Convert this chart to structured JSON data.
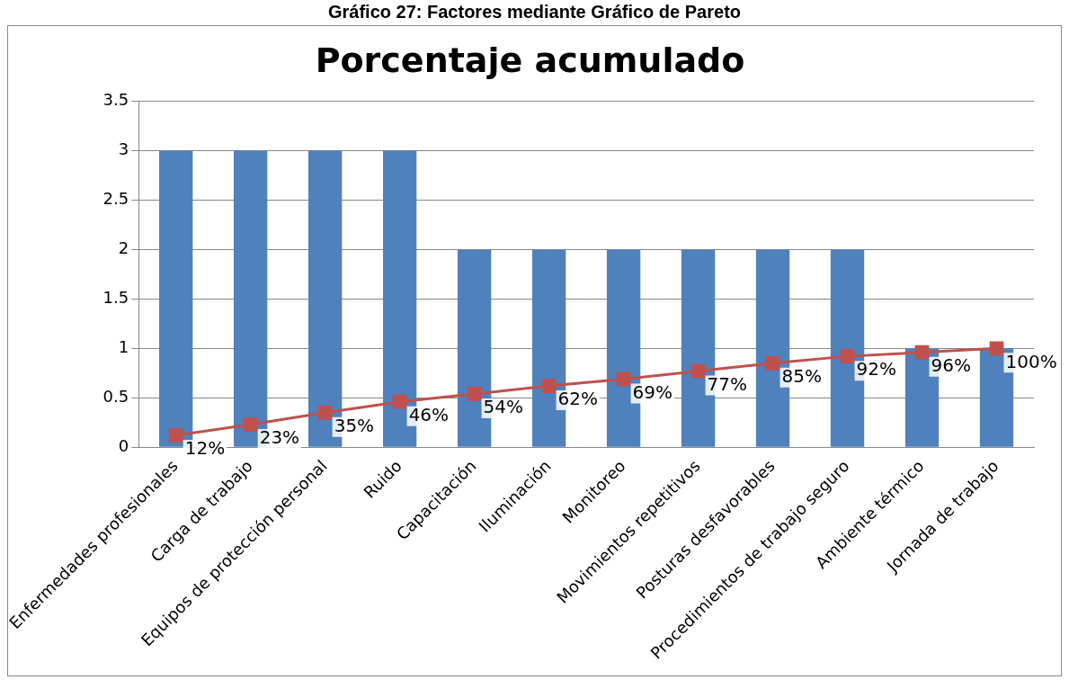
{
  "chart_data": {
    "type": "bar",
    "title": "Porcentaje acumulado",
    "annotations": [
      "Gráfico 27: Factores mediante Gráfico de Pareto"
    ],
    "categories": [
      "Enfermedades profesionales",
      "Carga de trabajo",
      "Equipos de protección personal",
      "Ruido",
      "Capacitación",
      "Iluminación",
      "Monitoreo",
      "Movimientos repetitivos",
      "Posturas desfavorables",
      "Procedimientos de trabajo seguro",
      "Ambiente térmico",
      "Jornada de trabajo"
    ],
    "series": [
      {
        "color": "#4f81bd",
        "values": [
          3,
          3,
          3,
          3,
          2,
          2,
          2,
          2,
          2,
          2,
          1,
          1
        ]
      },
      {
        "type": "line",
        "color": "#c0504d",
        "marker": "square",
        "values": [
          0.12,
          0.23,
          0.35,
          0.46,
          0.54,
          0.62,
          0.69,
          0.77,
          0.85,
          0.92,
          0.96,
          1.0
        ],
        "value_labels": [
          "12%",
          "23%",
          "35%",
          "46%",
          "54%",
          "62%",
          "69%",
          "77%",
          "85%",
          "92%",
          "96%",
          "100%"
        ]
      }
    ],
    "ylim": [
      0,
      3.5
    ],
    "yticks": [
      0,
      0.5,
      1,
      1.5,
      2,
      2.5,
      3,
      3.5
    ],
    "grid": "y",
    "legend": false
  }
}
